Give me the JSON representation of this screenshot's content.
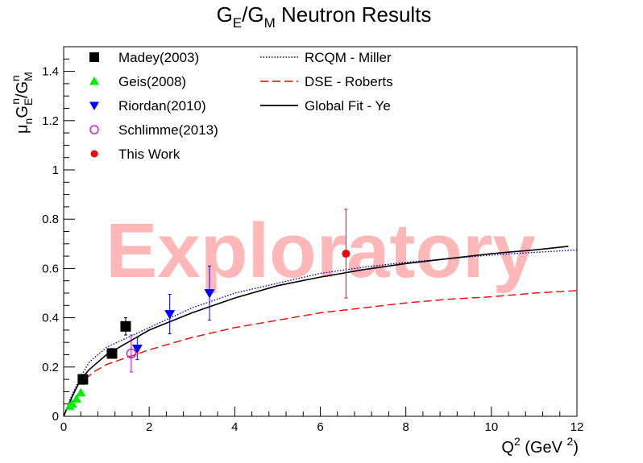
{
  "chart_data": {
    "type": "scatter",
    "title": {
      "text": "G",
      "sub1": "E",
      "mid": "/G",
      "sub2": "M",
      "tail": " Neutron Results"
    },
    "ylabel": {
      "mu": "μ",
      "mu_sub": "n",
      "g1": "G",
      "g1_sub": "E",
      "g1_sup": "n",
      "slash": "/G",
      "g2_sub": "M",
      "g2_sup": "n"
    },
    "xlabel": {
      "q": "Q",
      "sup": "2",
      "units": " (GeV ",
      "units_sup": "2",
      "close": ")"
    },
    "xlim": [
      0,
      12
    ],
    "ylim": [
      0,
      1.5
    ],
    "x_ticks": [
      "0",
      "2",
      "4",
      "6",
      "8",
      "10",
      "12"
    ],
    "y_ticks": [
      "0",
      "0.2",
      "0.4",
      "0.6",
      "0.8",
      "1",
      "1.2",
      "1.4"
    ],
    "grid": false,
    "legend_placement": "top-left",
    "watermark": "Exploratory",
    "series": [
      {
        "name": "Madey(2003)",
        "marker": "square",
        "color": "#000000",
        "points": [
          {
            "x": 0.45,
            "y": 0.15,
            "err": 0.02
          },
          {
            "x": 1.13,
            "y": 0.255,
            "err": 0.02
          },
          {
            "x": 1.45,
            "y": 0.365,
            "err": 0.035
          }
        ]
      },
      {
        "name": "Geis(2008)",
        "marker": "triangle-up",
        "color": "#00ee00",
        "points": [
          {
            "x": 0.14,
            "y": 0.04,
            "err": 0.01
          },
          {
            "x": 0.2,
            "y": 0.05,
            "err": 0.01
          },
          {
            "x": 0.3,
            "y": 0.07,
            "err": 0.01
          },
          {
            "x": 0.4,
            "y": 0.095,
            "err": 0.01
          }
        ]
      },
      {
        "name": "Riordan(2010)",
        "marker": "triangle-down",
        "color": "#0000ff",
        "points": [
          {
            "x": 1.72,
            "y": 0.275,
            "err": 0.045
          },
          {
            "x": 2.48,
            "y": 0.415,
            "err": 0.08
          },
          {
            "x": 3.41,
            "y": 0.5,
            "err": 0.11
          }
        ]
      },
      {
        "name": "Schlimme(2013)",
        "marker": "circle-open",
        "color": "#cc00cc",
        "points": [
          {
            "x": 1.58,
            "y": 0.255,
            "err": 0.075
          }
        ]
      },
      {
        "name": "This Work",
        "marker": "circle",
        "color": "#ff0000",
        "points": [
          {
            "x": 6.6,
            "y": 0.66,
            "err": 0.18
          }
        ]
      }
    ],
    "curves": [
      {
        "name": "RCQM - Miller",
        "style": "dotted",
        "color": "#0000cc",
        "x": [
          0,
          0.2,
          0.4,
          0.6,
          0.8,
          1.0,
          1.5,
          2,
          3,
          4,
          5,
          6,
          7,
          8,
          9,
          10,
          11,
          12
        ],
        "y": [
          0,
          0.09,
          0.16,
          0.22,
          0.25,
          0.28,
          0.32,
          0.36,
          0.44,
          0.5,
          0.54,
          0.58,
          0.605,
          0.625,
          0.64,
          0.655,
          0.665,
          0.675
        ]
      },
      {
        "name": "DSE - Roberts",
        "style": "dashed",
        "color": "#ff0000",
        "x": [
          0.5,
          0.7,
          1.0,
          1.5,
          2,
          3,
          4,
          5,
          6,
          7,
          8,
          9,
          10,
          11,
          12
        ],
        "y": [
          0.15,
          0.18,
          0.21,
          0.24,
          0.27,
          0.32,
          0.36,
          0.39,
          0.42,
          0.44,
          0.46,
          0.475,
          0.485,
          0.5,
          0.51
        ]
      },
      {
        "name": "Global Fit - Ye",
        "style": "solid",
        "color": "#000000",
        "x": [
          0,
          0.2,
          0.4,
          0.6,
          0.8,
          1.0,
          1.5,
          2,
          3,
          4,
          5,
          6,
          7,
          8,
          9,
          10,
          11,
          11.8
        ],
        "y": [
          0,
          0.08,
          0.15,
          0.19,
          0.22,
          0.25,
          0.3,
          0.35,
          0.42,
          0.48,
          0.53,
          0.565,
          0.595,
          0.62,
          0.64,
          0.66,
          0.675,
          0.69
        ]
      }
    ]
  }
}
